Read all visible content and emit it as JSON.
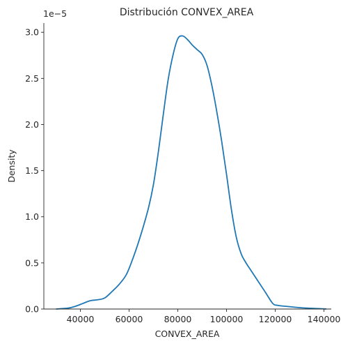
{
  "chart_data": {
    "type": "line",
    "title": "Distribución CONVEX_AREA",
    "xlabel": "CONVEX_AREA",
    "ylabel": "Density",
    "y_offset_label": "1e−5",
    "xlim": [
      25000,
      143000
    ],
    "ylim": [
      0,
      3.1
    ],
    "y_scale_note": "values in units of 1e-5",
    "grid": false,
    "legend": "none",
    "line_color": "#1f77b4",
    "x_ticks": [
      {
        "value": 40000,
        "label": "40000"
      },
      {
        "value": 60000,
        "label": "60000"
      },
      {
        "value": 80000,
        "label": "80000"
      },
      {
        "value": 100000,
        "label": "100000"
      },
      {
        "value": 120000,
        "label": "120000"
      },
      {
        "value": 140000,
        "label": "140000"
      }
    ],
    "y_ticks": [
      {
        "value": 0.0,
        "label": "0.0"
      },
      {
        "value": 0.5,
        "label": "0.5"
      },
      {
        "value": 1.0,
        "label": "1.0"
      },
      {
        "value": 1.5,
        "label": "1.5"
      },
      {
        "value": 2.0,
        "label": "2.0"
      },
      {
        "value": 2.5,
        "label": "2.5"
      },
      {
        "value": 3.0,
        "label": "3.0"
      }
    ],
    "series": [
      {
        "x": [
          30000,
          35000,
          38000,
          41000,
          44000,
          47000,
          50000,
          53000,
          56000,
          59000,
          62000,
          65000,
          68000,
          70000,
          72000,
          74000,
          76000,
          78000,
          80000,
          82000,
          84000,
          86000,
          88000,
          90000,
          92000,
          94000,
          96000,
          98000,
          100000,
          102000,
          104000,
          106000,
          108000,
          110000,
          113000,
          116000,
          119000,
          121000,
          124000,
          128000,
          133000,
          138000,
          141000
        ],
        "y": [
          0.0,
          0.01,
          0.03,
          0.06,
          0.09,
          0.1,
          0.12,
          0.19,
          0.27,
          0.38,
          0.58,
          0.82,
          1.1,
          1.35,
          1.7,
          2.1,
          2.48,
          2.75,
          2.93,
          2.96,
          2.92,
          2.86,
          2.81,
          2.76,
          2.64,
          2.42,
          2.14,
          1.82,
          1.46,
          1.08,
          0.78,
          0.6,
          0.5,
          0.42,
          0.3,
          0.18,
          0.06,
          0.04,
          0.03,
          0.02,
          0.01,
          0.005,
          0.0
        ]
      }
    ]
  }
}
